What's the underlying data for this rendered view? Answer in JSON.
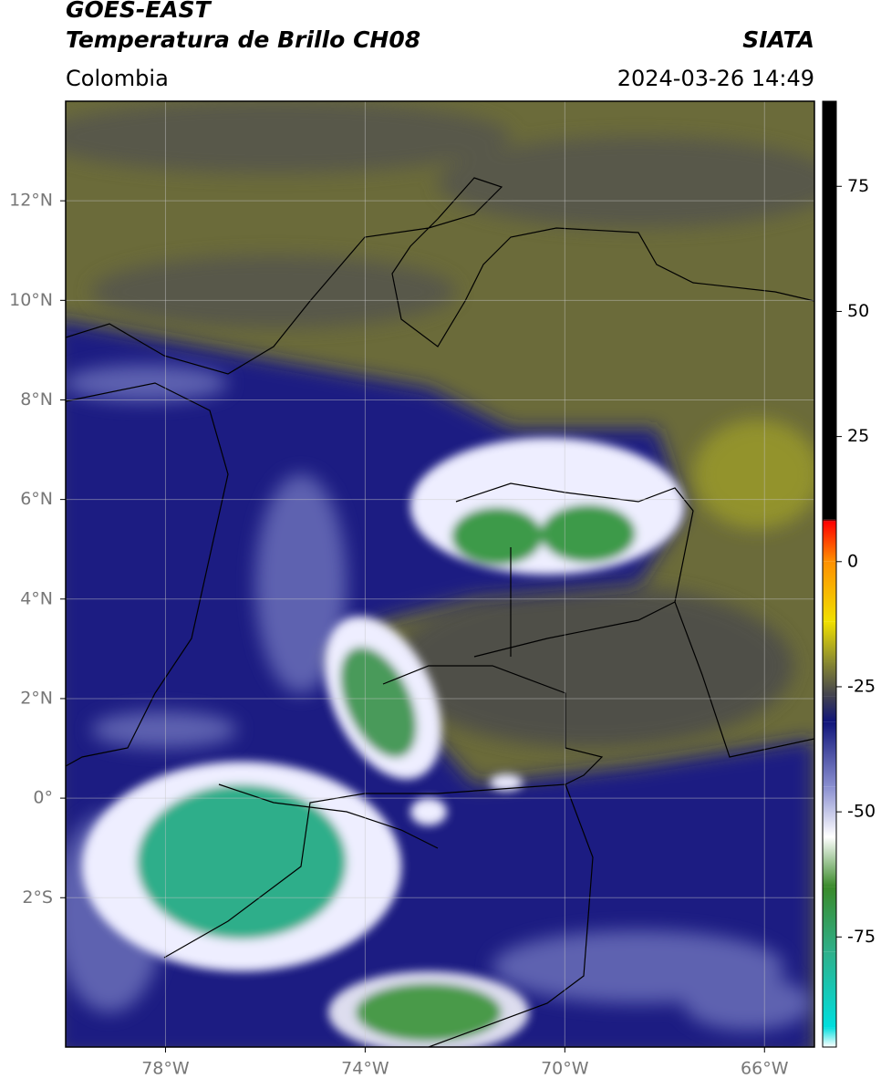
{
  "header": {
    "title": "GOES-EAST",
    "subtitle": "Temperatura de Brillo CH08",
    "region": "Colombia",
    "source": "SIATA",
    "datetime": "2024-03-26 14:49"
  },
  "map": {
    "xlim": [
      -80,
      -65
    ],
    "ylim": [
      -5,
      14
    ],
    "xticks": [
      {
        "value": -78,
        "label": "78°W"
      },
      {
        "value": -74,
        "label": "74°W"
      },
      {
        "value": -70,
        "label": "70°W"
      },
      {
        "value": -66,
        "label": "66°W"
      }
    ],
    "yticks": [
      {
        "value": 12,
        "label": "12°N"
      },
      {
        "value": 10,
        "label": "10°N"
      },
      {
        "value": 8,
        "label": "8°N"
      },
      {
        "value": 6,
        "label": "6°N"
      },
      {
        "value": 4,
        "label": "4°N"
      },
      {
        "value": 2,
        "label": "2°N"
      },
      {
        "value": 0,
        "label": "0°"
      },
      {
        "value": -2,
        "label": "2°S"
      }
    ],
    "grid": true
  },
  "colorbar": {
    "clim": [
      -97,
      92
    ],
    "ticks": [
      75,
      50,
      25,
      0,
      -25,
      -50,
      -75
    ],
    "colormap": [
      {
        "value": -97,
        "color": "#ffffff"
      },
      {
        "value": -93,
        "color": "#00dede"
      },
      {
        "value": -78,
        "color": "#2fb08a"
      },
      {
        "value": -65,
        "color": "#3a8a2a"
      },
      {
        "value": -55,
        "color": "#ffffff"
      },
      {
        "value": -45,
        "color": "#8a8fd0"
      },
      {
        "value": -32,
        "color": "#10157a"
      },
      {
        "value": -27,
        "color": "#404050"
      },
      {
        "value": -20,
        "color": "#8a8a30"
      },
      {
        "value": -12,
        "color": "#f0e000"
      },
      {
        "value": 0,
        "color": "#ff9000"
      },
      {
        "value": 8,
        "color": "#ff0000"
      },
      {
        "value": 8.5,
        "color": "#000000"
      },
      {
        "value": 92,
        "color": "#000000"
      }
    ]
  }
}
